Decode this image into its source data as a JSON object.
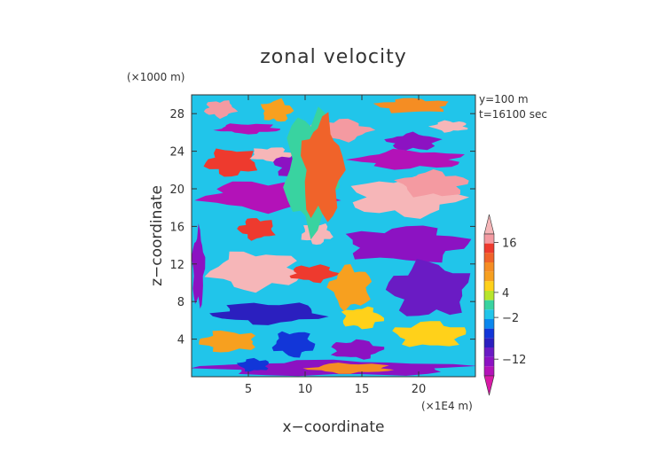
{
  "chart_data": {
    "type": "heatmap",
    "title": "zonal velocity",
    "xlabel": "x−coordinate",
    "ylabel": "z−coordinate",
    "x_unit": "(×1E4 m)",
    "y_unit": "(×1000 m)",
    "annotations": [
      "y=100 m",
      "t=16100 sec"
    ],
    "x_ticks": [
      5,
      10,
      15,
      20
    ],
    "y_ticks": [
      4,
      8,
      12,
      16,
      20,
      24,
      28
    ],
    "xlim": [
      0,
      25
    ],
    "ylim": [
      0,
      30
    ],
    "colorbar": {
      "labels": [
        {
          "value": 16,
          "text": "16"
        },
        {
          "value": 4,
          "text": "4"
        },
        {
          "value": -2,
          "text": "−2"
        },
        {
          "value": -12,
          "text": "−12"
        }
      ],
      "levels": [
        {
          "min": 18,
          "max": 22,
          "color": "#f6b6b8"
        },
        {
          "min": 16,
          "max": 18,
          "color": "#f49aa1"
        },
        {
          "min": 14,
          "max": 16,
          "color": "#ee3a2e"
        },
        {
          "min": 12,
          "max": 14,
          "color": "#f0632a"
        },
        {
          "min": 10,
          "max": 12,
          "color": "#f58d23"
        },
        {
          "min": 8,
          "max": 10,
          "color": "#f7a01f"
        },
        {
          "min": 4,
          "max": 8,
          "color": "#ffd11a"
        },
        {
          "min": 2,
          "max": 4,
          "color": "#b7e52c"
        },
        {
          "min": 0,
          "max": 2,
          "color": "#39d3a0"
        },
        {
          "min": -2,
          "max": 0,
          "color": "#21c5ea"
        },
        {
          "min": -4,
          "max": -2,
          "color": "#0b87ee"
        },
        {
          "min": -6,
          "max": -4,
          "color": "#1236d8"
        },
        {
          "min": -8,
          "max": -6,
          "color": "#2b1fbf"
        },
        {
          "min": -10,
          "max": -8,
          "color": "#6a1bc4"
        },
        {
          "min": -12,
          "max": -10,
          "color": "#8c12c2"
        },
        {
          "min": -16,
          "max": -12,
          "color": "#b312b8"
        },
        {
          "min": -22,
          "max": -16,
          "color": "#d81aa6"
        }
      ]
    },
    "features": [
      {
        "x": [
          2,
          8
        ],
        "z": [
          25.8,
          27
        ],
        "value": -14
      },
      {
        "x": [
          10,
          16
        ],
        "z": [
          25,
          27.5
        ],
        "value": 16
      },
      {
        "x": [
          17,
          22
        ],
        "z": [
          24,
          26
        ],
        "value": -12
      },
      {
        "x": [
          21,
          24.5
        ],
        "z": [
          26,
          27.3
        ],
        "value": 18
      },
      {
        "x": [
          1,
          4
        ],
        "z": [
          27.5,
          29.5
        ],
        "value": 16
      },
      {
        "x": [
          6,
          9
        ],
        "z": [
          27,
          29.6
        ],
        "value": 8
      },
      {
        "x": [
          16,
          23
        ],
        "z": [
          28,
          29.7
        ],
        "value": 10
      },
      {
        "x": [
          1,
          6
        ],
        "z": [
          21.2,
          24.4
        ],
        "value": 14
      },
      {
        "x": [
          5,
          9
        ],
        "z": [
          22.8,
          24.5
        ],
        "value": 18
      },
      {
        "x": [
          7,
          12
        ],
        "z": [
          21,
          24
        ],
        "value": -12
      },
      {
        "x": [
          14,
          24.5
        ],
        "z": [
          22,
          24.2
        ],
        "value": -14
      },
      {
        "x": [
          0.5,
          13
        ],
        "z": [
          17.5,
          21
        ],
        "value": -13
      },
      {
        "x": [
          13.5,
          24
        ],
        "z": [
          16.8,
          21.4
        ],
        "value": 19
      },
      {
        "x": [
          18,
          24.6
        ],
        "z": [
          19,
          22
        ],
        "value": 17
      },
      {
        "x": [
          4,
          7.5
        ],
        "z": [
          14.5,
          17
        ],
        "value": 14
      },
      {
        "x": [
          9.5,
          12.5
        ],
        "z": [
          14,
          16.4
        ],
        "value": 19
      },
      {
        "x": [
          13,
          24.8
        ],
        "z": [
          12,
          16.2
        ],
        "value": -12
      },
      {
        "x": [
          17,
          24.8
        ],
        "z": [
          6,
          12.5
        ],
        "value": -10
      },
      {
        "x": [
          1.3,
          10
        ],
        "z": [
          9,
          13.5
        ],
        "value": 19
      },
      {
        "x": [
          8.5,
          13
        ],
        "z": [
          10,
          12
        ],
        "value": 14
      },
      {
        "x": [
          0,
          1.2
        ],
        "z": [
          7,
          16
        ],
        "value": -12
      },
      {
        "x": [
          12,
          16
        ],
        "z": [
          7,
          12
        ],
        "value": 8
      },
      {
        "x": [
          1.5,
          12
        ],
        "z": [
          5.5,
          8
        ],
        "value": -8
      },
      {
        "x": [
          13,
          17
        ],
        "z": [
          5,
          7.5
        ],
        "value": 4
      },
      {
        "x": [
          17.5,
          24.5
        ],
        "z": [
          3,
          6
        ],
        "value": 6
      },
      {
        "x": [
          0.5,
          6
        ],
        "z": [
          2.5,
          5
        ],
        "value": 8
      },
      {
        "x": [
          7,
          11
        ],
        "z": [
          2,
          5
        ],
        "value": -6
      },
      {
        "x": [
          12,
          17
        ],
        "z": [
          1.8,
          4
        ],
        "value": -12
      },
      {
        "x": [
          0,
          25
        ],
        "z": [
          0,
          1.8
        ],
        "value": -12
      },
      {
        "x": [
          10,
          18
        ],
        "z": [
          0.3,
          1.5
        ],
        "value": 10
      },
      {
        "x": [
          8,
          13
        ],
        "z": [
          15,
          29
        ],
        "value": 0
      },
      {
        "x": [
          9.5,
          13.5
        ],
        "z": [
          16,
          28
        ],
        "value": 12
      },
      {
        "x": [
          4,
          7
        ],
        "z": [
          0.5,
          2
        ],
        "value": -6
      }
    ]
  }
}
